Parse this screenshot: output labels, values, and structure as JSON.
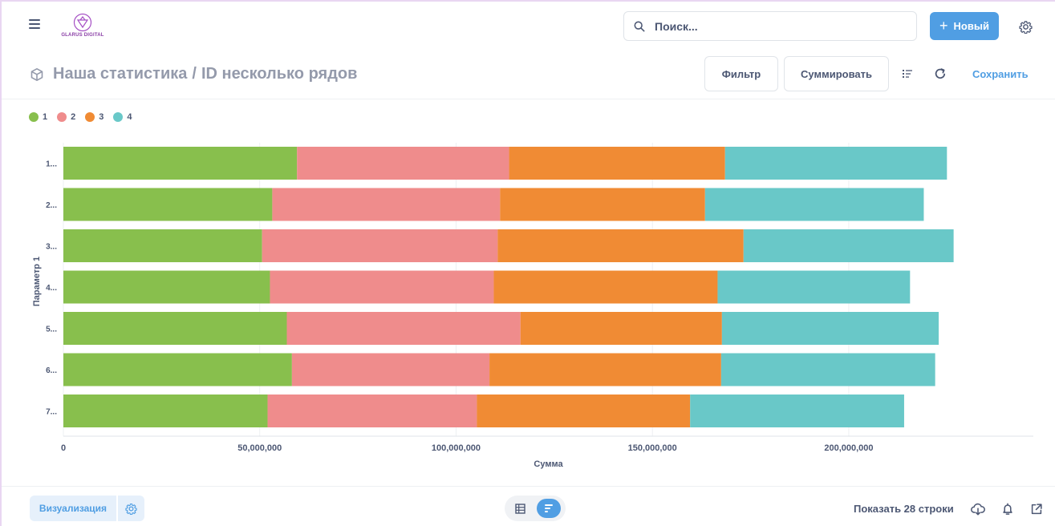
{
  "navbar": {
    "logo_text": "GLARUS DIGITAL",
    "search_placeholder": "Поиск...",
    "new_button": "Новый"
  },
  "header": {
    "collection": "Наша статистика",
    "separator": "/",
    "question": "ID несколько рядов",
    "filter_button": "Фильтр",
    "summarize_button": "Суммировать",
    "save_link": "Сохранить"
  },
  "footer": {
    "visualization_button": "Визуализация",
    "row_count": "Показать 28 строки"
  },
  "colors": {
    "accent": "#509ee3",
    "text": "#4c5773",
    "muted": "#949aab"
  },
  "icons": [
    "hamburger-icon",
    "search-icon",
    "plus-icon",
    "gear-icon",
    "cube-icon",
    "list-icon",
    "refresh-icon",
    "table-icon",
    "bar-chart-icon",
    "download-icon",
    "bell-icon",
    "external-link-icon"
  ],
  "chart_data": {
    "type": "bar",
    "orientation": "horizontal",
    "stacked": true,
    "categories": [
      "1...",
      "2...",
      "3...",
      "4...",
      "5...",
      "6...",
      "7..."
    ],
    "series": [
      {
        "name": "1",
        "color": "#88bf4d",
        "values": [
          59500000,
          53200000,
          50600000,
          52600000,
          56900000,
          58200000,
          52000000
        ]
      },
      {
        "name": "2",
        "color": "#ef8c8c",
        "values": [
          54000000,
          58000000,
          60000000,
          57000000,
          59500000,
          50300000,
          53300000
        ]
      },
      {
        "name": "3",
        "color": "#f08b34",
        "values": [
          55000000,
          52200000,
          62600000,
          57000000,
          51300000,
          59000000,
          54300000
        ]
      },
      {
        "name": "4",
        "color": "#69c8c8",
        "values": [
          56500000,
          55700000,
          53500000,
          49000000,
          55200000,
          54500000,
          54500000
        ]
      }
    ],
    "xlabel": "Сумма",
    "ylabel": "Параметр 1",
    "xlim": [
      0,
      247000000
    ],
    "xticks": [
      0,
      50000000,
      100000000,
      150000000,
      200000000
    ],
    "xtick_labels": [
      "0",
      "50,000,000",
      "100,000,000",
      "150,000,000",
      "200,000,000"
    ],
    "grid": true,
    "legend": "top-left"
  }
}
